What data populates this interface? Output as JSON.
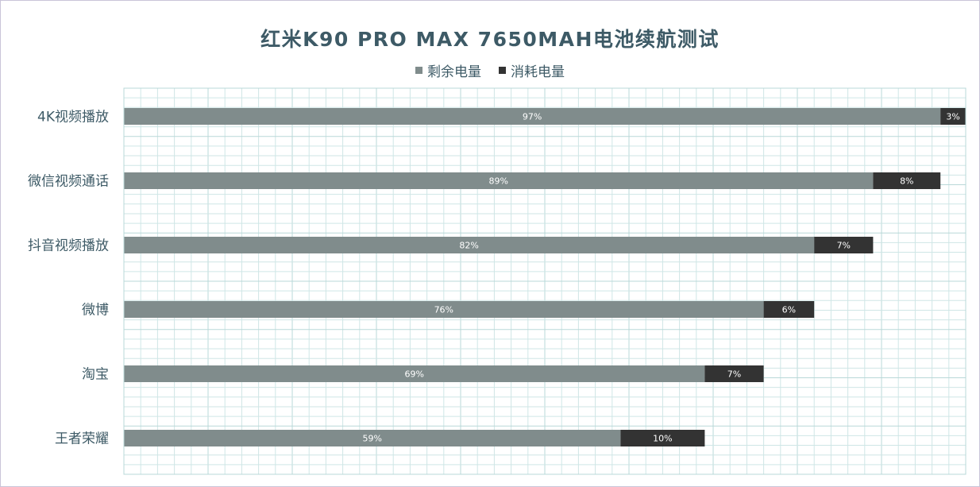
{
  "chart_data": {
    "type": "bar",
    "orientation": "horizontal",
    "stacked": true,
    "title": "红米K90 PRO MAX 7650MAH电池续航测试",
    "categories": [
      "4K视频播放",
      "微信视频通话",
      "抖音视频播放",
      "微博",
      "淘宝",
      "王者荣耀"
    ],
    "series": [
      {
        "name": "剩余电量",
        "color": "#808c8c",
        "values": [
          97,
          89,
          82,
          76,
          69,
          59
        ],
        "labels": [
          "97%",
          "89%",
          "82%",
          "76%",
          "69%",
          "59%"
        ]
      },
      {
        "name": "消耗电量",
        "color": "#333333",
        "values": [
          3,
          8,
          7,
          6,
          7,
          10
        ],
        "labels": [
          "3%",
          "8%",
          "7%",
          "6%",
          "7%",
          "10%"
        ]
      }
    ],
    "xlim": [
      0,
      100
    ],
    "grid": true,
    "legend_position": "top-center",
    "grid_color": "#cfe6e6",
    "text_color": "#3d5a66"
  }
}
